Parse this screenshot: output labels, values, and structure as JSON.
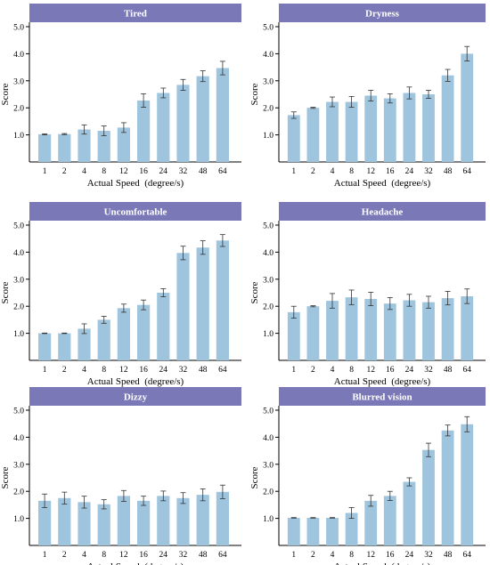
{
  "colors": {
    "title_bar": "#7b78b7",
    "bar": "#9ec4de",
    "error_bar": "#333333"
  },
  "chart_data": [
    {
      "type": "bar",
      "title": "Tired",
      "xlabel": "Actual Speed  (degree/s)",
      "ylabel": "Score",
      "categories": [
        "1",
        "2",
        "4",
        "8",
        "12",
        "16",
        "24",
        "32",
        "48",
        "64"
      ],
      "values": [
        1.02,
        1.03,
        1.2,
        1.15,
        1.27,
        2.27,
        2.55,
        2.85,
        3.17,
        3.47
      ],
      "errors": [
        0.02,
        0.02,
        0.17,
        0.18,
        0.18,
        0.25,
        0.18,
        0.2,
        0.2,
        0.25
      ],
      "ylim": [
        0,
        5
      ],
      "yticks": [
        "1.0",
        "2.0",
        "3.0",
        "4.0",
        "5.0"
      ]
    },
    {
      "type": "bar",
      "title": "Dryness",
      "xlabel": "Actual Speed  (degree/s)",
      "ylabel": "Score",
      "categories": [
        "1",
        "2",
        "4",
        "8",
        "12",
        "16",
        "24",
        "32",
        "48",
        "64"
      ],
      "values": [
        1.73,
        2.0,
        2.22,
        2.22,
        2.45,
        2.35,
        2.55,
        2.5,
        3.2,
        4.0
      ],
      "errors": [
        0.12,
        0.02,
        0.18,
        0.2,
        0.2,
        0.17,
        0.22,
        0.15,
        0.22,
        0.27
      ],
      "ylim": [
        0,
        5
      ],
      "yticks": [
        "1.0",
        "2.0",
        "3.0",
        "4.0",
        "5.0"
      ]
    },
    {
      "type": "bar",
      "title": "Uncomfortable",
      "xlabel": "Actual Speed  (degree/s)",
      "ylabel": "Score",
      "categories": [
        "1",
        "2",
        "4",
        "8",
        "12",
        "16",
        "24",
        "32",
        "48",
        "64"
      ],
      "values": [
        1.0,
        1.0,
        1.17,
        1.5,
        1.93,
        2.05,
        2.5,
        3.97,
        4.17,
        4.43
      ],
      "errors": [
        0.01,
        0.01,
        0.18,
        0.13,
        0.15,
        0.18,
        0.15,
        0.25,
        0.25,
        0.22
      ],
      "ylim": [
        0,
        5
      ],
      "yticks": [
        "1.0",
        "2.0",
        "3.0",
        "4.0",
        "5.0"
      ]
    },
    {
      "type": "bar",
      "title": "Headache",
      "xlabel": "Actual Speed  (degree/s)",
      "ylabel": "Score",
      "categories": [
        "1",
        "2",
        "4",
        "8",
        "12",
        "16",
        "24",
        "32",
        "48",
        "64"
      ],
      "values": [
        1.78,
        2.0,
        2.2,
        2.33,
        2.27,
        2.1,
        2.22,
        2.15,
        2.3,
        2.37
      ],
      "errors": [
        0.22,
        0.02,
        0.27,
        0.27,
        0.25,
        0.22,
        0.22,
        0.22,
        0.25,
        0.27
      ],
      "ylim": [
        0,
        5
      ],
      "yticks": [
        "1.0",
        "2.0",
        "3.0",
        "4.0",
        "5.0"
      ]
    },
    {
      "type": "bar",
      "title": "Dizzy",
      "xlabel": "Actual Speed  (degree/s)",
      "ylabel": "Score",
      "categories": [
        "1",
        "2",
        "4",
        "8",
        "12",
        "16",
        "24",
        "32",
        "48",
        "64"
      ],
      "values": [
        1.65,
        1.75,
        1.6,
        1.52,
        1.83,
        1.65,
        1.83,
        1.75,
        1.87,
        1.98
      ],
      "errors": [
        0.25,
        0.22,
        0.22,
        0.17,
        0.2,
        0.17,
        0.18,
        0.2,
        0.22,
        0.25
      ],
      "ylim": [
        0,
        5
      ],
      "yticks": [
        "1.0",
        "2.0",
        "3.0",
        "4.0",
        "5.0"
      ]
    },
    {
      "type": "bar",
      "title": "Blurred vision",
      "xlabel": "Actual Speed  (degree/s)",
      "ylabel": "Score",
      "categories": [
        "1",
        "2",
        "4",
        "8",
        "12",
        "16",
        "24",
        "32",
        "48",
        "64"
      ],
      "values": [
        1.02,
        1.02,
        1.02,
        1.2,
        1.65,
        1.83,
        2.35,
        3.53,
        4.25,
        4.48
      ],
      "errors": [
        0.01,
        0.01,
        0.01,
        0.2,
        0.2,
        0.17,
        0.15,
        0.25,
        0.2,
        0.28
      ],
      "ylim": [
        0,
        5
      ],
      "yticks": [
        "1.0",
        "2.0",
        "3.0",
        "4.0",
        "5.0"
      ]
    }
  ]
}
